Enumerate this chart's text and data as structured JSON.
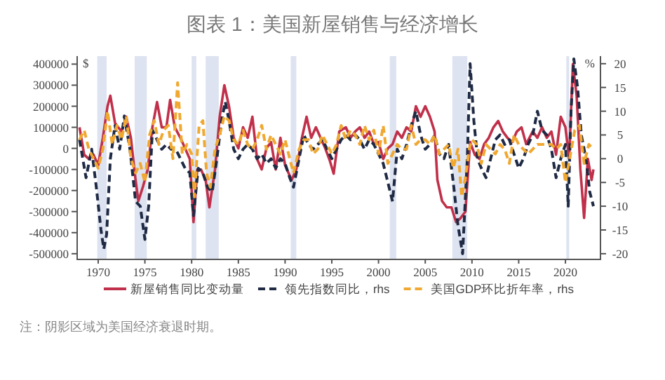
{
  "chart_data": {
    "type": "line",
    "title": "图表 1：美国新屋销售与经济增长",
    "ylabel": "$",
    "y2label": "%",
    "xlim": [
      1967.75,
      2023.75
    ],
    "xticks": [
      1970,
      1975,
      1980,
      1985,
      1990,
      1995,
      2000,
      2005,
      2010,
      2015,
      2020
    ],
    "ylim": [
      -527000,
      438000
    ],
    "yticks": [
      -500000,
      -400000,
      -300000,
      -200000,
      -100000,
      0,
      100000,
      200000,
      300000,
      400000
    ],
    "y2lim": [
      -21.2,
      21.6
    ],
    "y2ticks": [
      -20,
      -15,
      -10,
      -5,
      0,
      5,
      10,
      15,
      20
    ],
    "grid": false,
    "legend": "bottom",
    "bands": [
      {
        "axis": "x",
        "from": 1969.9,
        "to": 1970.9,
        "color": "#dde3f0"
      },
      {
        "axis": "x",
        "from": 1973.9,
        "to": 1975.2,
        "color": "#dde3f0"
      },
      {
        "axis": "x",
        "from": 1980.0,
        "to": 1980.5,
        "color": "#dde3f0"
      },
      {
        "axis": "x",
        "from": 1981.5,
        "to": 1982.9,
        "color": "#dde3f0"
      },
      {
        "axis": "x",
        "from": 1990.6,
        "to": 1991.2,
        "color": "#dde3f0"
      },
      {
        "axis": "x",
        "from": 2001.2,
        "to": 2001.9,
        "color": "#dde3f0"
      },
      {
        "axis": "x",
        "from": 2007.9,
        "to": 2009.5,
        "color": "#dde3f0"
      },
      {
        "axis": "x",
        "from": 2020.1,
        "to": 2020.4,
        "color": "#dde3f0"
      }
    ],
    "series": [
      {
        "name": "新屋销售同比变动量",
        "color": "#c0304a",
        "line_style": "solid",
        "x": [
          1968,
          1968.5,
          1969,
          1969.5,
          1970,
          1970.5,
          1971,
          1971.3,
          1971.8,
          1972.5,
          1973,
          1973.5,
          1974,
          1974.3,
          1974.8,
          1975.3,
          1975.8,
          1976.3,
          1976.8,
          1977.3,
          1977.7,
          1978.2,
          1978.8,
          1979.3,
          1979.8,
          1980.2,
          1980.6,
          1981,
          1981.5,
          1981.9,
          1982.5,
          1983,
          1983.5,
          1984,
          1984.5,
          1985,
          1985.5,
          1986,
          1986.5,
          1987,
          1987.5,
          1988,
          1988.5,
          1989,
          1989.5,
          1990,
          1990.7,
          1991.2,
          1991.8,
          1992.3,
          1992.8,
          1993.3,
          1993.8,
          1994.3,
          1994.8,
          1995.2,
          1995.8,
          1996.5,
          1997,
          1997.5,
          1998,
          1998.5,
          1999,
          1999.5,
          2000,
          2000.5,
          2001,
          2001.5,
          2002,
          2002.5,
          2003,
          2003.5,
          2004,
          2004.5,
          2005,
          2005.5,
          2006,
          2006.3,
          2006.8,
          2007.3,
          2007.8,
          2008.3,
          2008.8,
          2009.3,
          2009.8,
          2010.3,
          2010.8,
          2011.3,
          2011.8,
          2012.3,
          2012.8,
          2013.3,
          2013.8,
          2014.3,
          2014.8,
          2015.3,
          2015.8,
          2016.5,
          2017,
          2017.5,
          2018,
          2018.5,
          2019,
          2019.5,
          2020,
          2020.4,
          2020.8,
          2021.2,
          2021.6,
          2022,
          2022.4,
          2022.8,
          2023
        ],
        "values": [
          100000,
          -30000,
          -50000,
          -30000,
          -80000,
          50000,
          200000,
          250000,
          120000,
          80000,
          150000,
          50000,
          -150000,
          -250000,
          -180000,
          -100000,
          100000,
          220000,
          100000,
          100000,
          230000,
          100000,
          50000,
          0,
          -50000,
          -350000,
          -100000,
          -100000,
          -150000,
          -280000,
          -100000,
          150000,
          300000,
          200000,
          50000,
          0,
          100000,
          50000,
          150000,
          -50000,
          -100000,
          0,
          30000,
          -100000,
          50000,
          -80000,
          -150000,
          -100000,
          50000,
          150000,
          50000,
          100000,
          50000,
          0,
          -60000,
          -120000,
          80000,
          100000,
          50000,
          80000,
          100000,
          50000,
          80000,
          20000,
          30000,
          -50000,
          0,
          20000,
          80000,
          50000,
          100000,
          80000,
          200000,
          150000,
          200000,
          150000,
          80000,
          -150000,
          -250000,
          -280000,
          -280000,
          -350000,
          -330000,
          -300000,
          30000,
          -30000,
          -50000,
          20000,
          50000,
          100000,
          130000,
          80000,
          50000,
          30000,
          80000,
          100000,
          20000,
          80000,
          50000,
          100000,
          50000,
          80000,
          -30000,
          150000,
          100000,
          -50000,
          400000,
          250000,
          -100000,
          -330000,
          -50000,
          -150000,
          -100000
        ]
      },
      {
        "name": "领先指数同比，rhs",
        "color": "#1f2a44",
        "line_style": "dashed",
        "axis": "y2",
        "x": [
          1968,
          1968.7,
          1969.3,
          1969.8,
          1970.3,
          1970.6,
          1970.9,
          1971.3,
          1971.8,
          1972.3,
          1972.8,
          1973.4,
          1974,
          1974.5,
          1975,
          1975.4,
          1975.8,
          1976.3,
          1976.8,
          1977.3,
          1977.8,
          1978.3,
          1978.8,
          1979.3,
          1979.8,
          1980.2,
          1980.7,
          1981.2,
          1981.7,
          1982.2,
          1982.7,
          1983.2,
          1983.6,
          1984,
          1984.5,
          1985,
          1985.5,
          1986,
          1986.5,
          1987,
          1987.5,
          1988,
          1988.5,
          1989,
          1989.5,
          1990,
          1990.5,
          1990.9,
          1991.5,
          1992,
          1992.5,
          1993,
          1993.5,
          1994,
          1994.5,
          1995,
          1995.5,
          1996,
          1996.5,
          1997,
          1997.5,
          1998,
          1998.5,
          1999,
          1999.5,
          2000,
          2000.5,
          2001,
          2001.5,
          2002,
          2002.5,
          2003,
          2003.5,
          2004,
          2004.5,
          2005,
          2005.5,
          2006,
          2006.5,
          2007,
          2007.5,
          2008,
          2008.5,
          2009,
          2009.5,
          2009.8,
          2010.2,
          2010.6,
          2011,
          2011.5,
          2012,
          2012.5,
          2013,
          2013.5,
          2014,
          2014.5,
          2015,
          2015.5,
          2016,
          2016.5,
          2017,
          2017.5,
          2018,
          2018.5,
          2019,
          2019.5,
          2020,
          2020.3,
          2020.6,
          2020.9,
          2021.3,
          2021.7,
          2022.2,
          2022.6,
          2023
        ],
        "values": [
          4,
          -4,
          2,
          -6,
          -15,
          -19,
          -16,
          0,
          7,
          2,
          9,
          2,
          -9,
          -10,
          -17,
          -10,
          6,
          4,
          2,
          3,
          2,
          2,
          0,
          -2,
          -3,
          -12,
          -2,
          -3,
          -6,
          -7,
          0,
          8,
          12,
          8,
          2,
          0,
          2,
          3,
          2,
          0,
          1,
          -1,
          0,
          -2,
          0,
          -1,
          -4,
          -6,
          0,
          5,
          3,
          2,
          3,
          4,
          2,
          0,
          2,
          4,
          5,
          4,
          5,
          4,
          2,
          4,
          3,
          1,
          -1,
          -5,
          -9,
          2,
          0,
          3,
          7,
          10,
          5,
          2,
          3,
          5,
          1,
          0,
          3,
          -5,
          -14,
          -20,
          0,
          20,
          8,
          0,
          -2,
          -4,
          0,
          4,
          5,
          3,
          4,
          1,
          -2,
          0,
          3,
          5,
          10,
          6,
          5,
          2,
          -4,
          0,
          3,
          -10,
          10,
          21,
          15,
          5,
          0,
          -7,
          -10
        ]
      },
      {
        "name": "美国GDP环比折年率，rhs",
        "color": "#f0a830",
        "line_style": "dashed",
        "axis": "y2",
        "x": [
          1968,
          1968.5,
          1969,
          1969.5,
          1970,
          1970.5,
          1971,
          1971.5,
          1972,
          1972.5,
          1973,
          1973.5,
          1974,
          1974.5,
          1975,
          1975.5,
          1976,
          1976.5,
          1977,
          1977.5,
          1978,
          1978.5,
          1979,
          1979.5,
          1980,
          1980.3,
          1980.8,
          1981.2,
          1981.6,
          1982,
          1982.5,
          1983,
          1983.5,
          1984,
          1984.5,
          1985,
          1985.5,
          1986,
          1986.5,
          1987,
          1987.5,
          1988,
          1988.5,
          1989,
          1989.5,
          1990,
          1990.5,
          1990.9,
          1991.5,
          1992,
          1992.5,
          1993,
          1993.5,
          1994,
          1994.5,
          1995,
          1995.5,
          1996,
          1996.5,
          1997,
          1997.5,
          1998,
          1998.5,
          1999,
          1999.5,
          2000,
          2000.5,
          2001,
          2001.5,
          2002,
          2002.5,
          2003,
          2003.5,
          2004,
          2004.5,
          2005,
          2005.5,
          2006,
          2006.5,
          2007,
          2007.5,
          2008,
          2008.5,
          2008.9,
          2009.3,
          2009.7,
          2010,
          2010.5,
          2011,
          2011.5,
          2012,
          2012.5,
          2013,
          2013.5,
          2014,
          2014.5,
          2015,
          2015.5,
          2016,
          2016.5,
          2017,
          2017.5,
          2018,
          2018.5,
          2019,
          2019.5,
          2020,
          2021,
          2021.5,
          2022,
          2022.5,
          2023
        ],
        "values": [
          4,
          6,
          2,
          0,
          -2,
          2,
          10,
          3,
          7,
          4,
          9,
          0,
          -3,
          -1,
          -5,
          5,
          8,
          3,
          6,
          7,
          0,
          16,
          1,
          3,
          1,
          -8,
          7,
          8,
          -3,
          -6,
          2,
          5,
          9,
          8,
          4,
          3,
          6,
          3,
          2,
          4,
          7,
          2,
          5,
          3,
          1,
          4,
          0,
          -3,
          2,
          4,
          4,
          1,
          2,
          5,
          3,
          1,
          3,
          7,
          4,
          6,
          5,
          3,
          7,
          4,
          6,
          1,
          7,
          -1,
          1,
          3,
          2,
          2,
          7,
          3,
          4,
          4,
          3,
          5,
          1,
          2,
          3,
          -2,
          2,
          -8,
          -4,
          2,
          4,
          3,
          -1,
          3,
          2,
          1,
          3,
          2,
          -1,
          5,
          3,
          2,
          1,
          2,
          3,
          3,
          3,
          3,
          2,
          3,
          -5,
          6,
          7,
          -1,
          3,
          2
        ]
      }
    ],
    "annotations": [
      "注：阴影区域为美国经济衰退时期。"
    ]
  }
}
